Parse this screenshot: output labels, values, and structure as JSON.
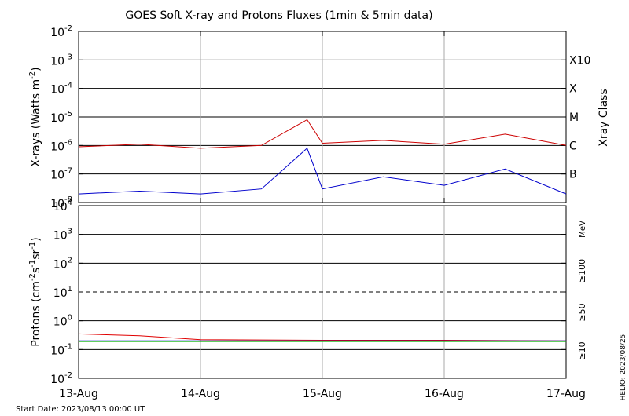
{
  "title": "GOES Soft X-ray and Protons Fluxes   (1min & 5min data)",
  "footer": {
    "start_date": "Start Date: 2023/08/13 00:00 UT",
    "stamp": "HELIO: 2023/08/25"
  },
  "colors": {
    "xray_long": "#cc0000",
    "xray_short": "#0000cc",
    "protons_10": "#e00000",
    "protons_50": "#0000cc",
    "protons_100": "#00b000",
    "grid": "#000000",
    "day_lines": "#aaaaaa"
  },
  "x_ticks": [
    "13-Aug",
    "14-Aug",
    "15-Aug",
    "16-Aug",
    "17-Aug"
  ],
  "xray_panel": {
    "ylabel": "X-rays (Watts m",
    "ylabel_sup": "-2",
    "ylabel_end": ")",
    "exponents": [
      "-2",
      "-3",
      "-4",
      "-5",
      "-6",
      "-7",
      "-8"
    ],
    "right_label": "Xray Class",
    "classes": [
      "X10",
      "X",
      "M",
      "C",
      "B"
    ]
  },
  "proton_panel": {
    "ylabel_parts": [
      "Protons (cm",
      "-2",
      "s",
      "-1",
      "sr",
      "-1",
      ")"
    ],
    "exponents": [
      "4",
      "3",
      "2",
      "1",
      "0",
      "-1",
      "-2"
    ],
    "unit": "MeV",
    "channels": [
      {
        "label": "≥100",
        "color": "#00b000"
      },
      {
        "label": "≥50",
        "color": "#0000cc"
      },
      {
        "label": "≥10",
        "color": "#e00000"
      }
    ]
  },
  "chart_data": [
    {
      "type": "line",
      "title": "GOES Soft X-ray and Protons Fluxes   (1min & 5min data)",
      "ylabel": "X-rays (Watts m-2)",
      "y_scale": "log",
      "ylim": [
        1e-08,
        0.01
      ],
      "xlim": [
        "2023-08-13",
        "2023-08-17"
      ],
      "grid": true,
      "x": [
        "2023-08-13 00:00",
        "2023-08-13 12:00",
        "2023-08-14 00:00",
        "2023-08-14 12:00",
        "2023-08-14 21:00",
        "2023-08-15 00:00",
        "2023-08-15 12:00",
        "2023-08-16 00:00",
        "2023-08-16 12:00",
        "2023-08-17 00:00"
      ],
      "series": [
        {
          "color": "#cc0000",
          "values": [
            9e-07,
            1.1e-06,
            8e-07,
            1e-06,
            8e-06,
            1.2e-06,
            1.5e-06,
            1.1e-06,
            2.5e-06,
            1e-06
          ]
        },
        {
          "color": "#0000cc",
          "values": [
            2e-08,
            2.5e-08,
            2e-08,
            3e-08,
            8e-07,
            3e-08,
            8e-08,
            4e-08,
            1.5e-07,
            2e-08
          ]
        }
      ]
    },
    {
      "type": "line",
      "ylabel": "Protons (cm-2 s-1 sr-1)",
      "y_scale": "log",
      "ylim": [
        0.01,
        10000
      ],
      "xlim": [
        "2023-08-13",
        "2023-08-17"
      ],
      "grid": true,
      "threshold": 10,
      "x": [
        "2023-08-13 00:00",
        "2023-08-13 12:00",
        "2023-08-14 00:00",
        "2023-08-15 00:00",
        "2023-08-16 00:00",
        "2023-08-17 00:00"
      ],
      "series": [
        {
          "color": "#e00000",
          "values": [
            0.35,
            0.3,
            0.22,
            0.21,
            0.21,
            0.2
          ]
        },
        {
          "color": "#0000cc",
          "values": [
            0.2,
            0.2,
            0.2,
            0.2,
            0.2,
            0.2
          ]
        },
        {
          "color": "#00b000",
          "values": [
            0.19,
            0.19,
            0.19,
            0.19,
            0.19,
            0.19
          ]
        }
      ]
    }
  ]
}
